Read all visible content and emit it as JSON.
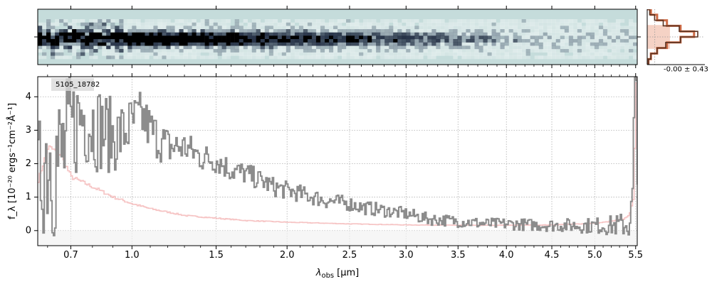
{
  "chart_data": [
    {
      "type": "heatmap",
      "panel": "2d-spectrum",
      "background_color": "#c5dcdb",
      "colormap": [
        "#c5dcdb",
        "#ffffff",
        "#263247",
        "#000000"
      ],
      "x_range_um": [
        0.56,
        5.52
      ]
    },
    {
      "type": "step-histogram",
      "panel": "residual-histogram",
      "annotation": "-0.00 ± 0.43",
      "bins": [
        -1.0,
        -0.8,
        -0.6,
        -0.4,
        -0.2,
        0.0,
        0.2,
        0.4,
        0.6,
        0.8,
        1.0
      ],
      "observed_counts": [
        1,
        3,
        8,
        15,
        27,
        41,
        26,
        13,
        6,
        2
      ],
      "model_counts": [
        1,
        3,
        8,
        16,
        27,
        38,
        27,
        16,
        8,
        3
      ],
      "observed_color": "#5a3322",
      "model_color": "#cc6a45",
      "band_color": "#f3c7b7"
    },
    {
      "type": "line",
      "panel": "1d-spectrum",
      "label": "5105_18782",
      "xlabel_main": "λ",
      "xlabel_sub": "obs",
      "xlabel_unit": "[μm]",
      "ylabel": "f_λ [10⁻²⁰ ergs⁻¹cm⁻²Å⁻¹]",
      "xlim": [
        0.56,
        5.52
      ],
      "ylim": [
        -0.45,
        4.6
      ],
      "x_scale": "sqrt",
      "x_ticks": [
        0.7,
        1.0,
        1.5,
        2.0,
        2.5,
        3.0,
        3.5,
        4.0,
        4.5,
        5.0,
        5.5
      ],
      "x_tick_labels": [
        "0.7",
        "1.0",
        "1.5",
        "2.0",
        "2.5",
        "3.0",
        "3.5",
        "4.0",
        "4.5",
        "5.0",
        "5.5"
      ],
      "y_ticks": [
        0,
        1,
        2,
        3,
        4
      ],
      "y_tick_labels": [
        "0",
        "1",
        "2",
        "3",
        "4"
      ],
      "grid": true,
      "series": [
        {
          "role": "flux",
          "color": "#8c8c8c",
          "x": [
            0.56,
            0.6,
            0.65,
            0.7,
            0.75,
            0.8,
            0.85,
            0.9,
            0.95,
            1.0,
            1.05,
            1.1,
            1.15,
            1.2,
            1.3,
            1.4,
            1.5,
            1.6,
            1.7,
            1.8,
            1.9,
            2.0,
            2.1,
            2.2,
            2.3,
            2.4,
            2.5,
            2.6,
            2.8,
            3.0,
            3.2,
            3.4,
            3.6,
            3.8,
            4.0,
            4.2,
            4.4,
            4.6,
            4.8,
            5.0,
            5.2,
            5.3,
            5.4,
            5.45,
            5.48,
            5.5
          ],
          "y": [
            1.5,
            2.5,
            2.0,
            3.0,
            3.5,
            3.2,
            3.0,
            2.8,
            2.9,
            3.2,
            3.4,
            3.0,
            2.7,
            2.5,
            2.5,
            2.2,
            2.1,
            1.8,
            1.7,
            1.5,
            1.3,
            1.2,
            1.1,
            1.0,
            0.9,
            0.85,
            0.8,
            0.7,
            0.6,
            0.5,
            0.35,
            0.3,
            0.25,
            0.2,
            0.2,
            0.18,
            0.16,
            0.16,
            0.15,
            0.15,
            0.15,
            0.16,
            0.2,
            0.5,
            3.6,
            1.0
          ]
        },
        {
          "role": "uncertainty",
          "color": "#f4b8b8",
          "x": [
            0.56,
            0.6,
            0.65,
            0.7,
            0.75,
            0.8,
            0.85,
            0.9,
            0.95,
            1.0,
            1.1,
            1.2,
            1.3,
            1.5,
            1.7,
            2.0,
            2.5,
            3.0,
            3.5,
            4.0,
            4.5,
            5.0,
            5.2,
            5.35,
            5.42,
            5.46,
            5.48,
            5.5
          ],
          "y": [
            1.5,
            2.5,
            2.3,
            1.6,
            1.45,
            1.3,
            1.15,
            1.0,
            0.9,
            0.8,
            0.65,
            0.55,
            0.45,
            0.37,
            0.3,
            0.25,
            0.2,
            0.17,
            0.16,
            0.16,
            0.17,
            0.22,
            0.28,
            0.35,
            0.5,
            0.9,
            2.5,
            4.5
          ]
        }
      ]
    }
  ]
}
